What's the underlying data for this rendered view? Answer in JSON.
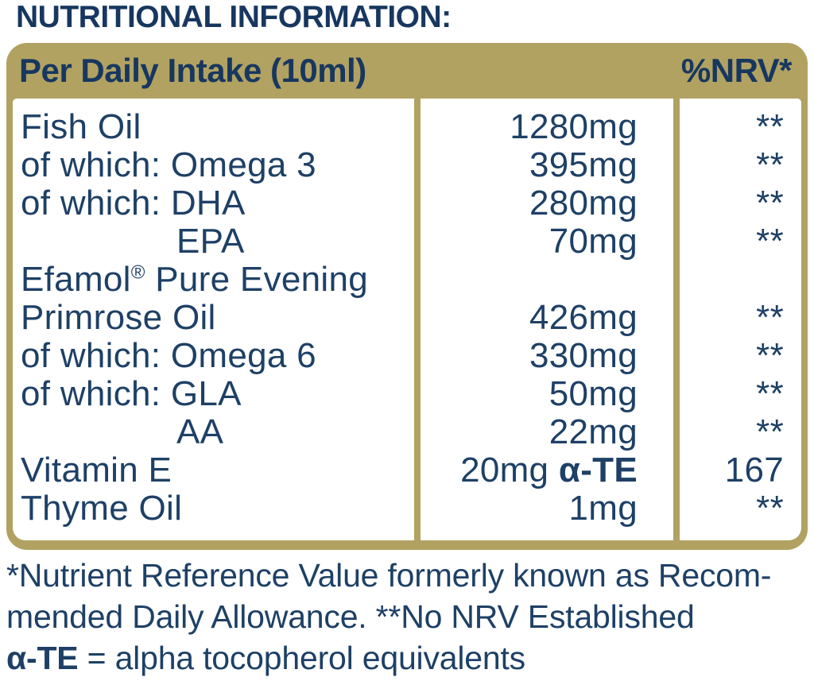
{
  "title": "NUTRITIONAL INFORMATION:",
  "colors": {
    "gold": "#b1a262",
    "navy_header": "#17375f",
    "navy_body": "#1e4066"
  },
  "table": {
    "header": {
      "intake_label": "Per Daily Intake (10ml)",
      "nrv_label": "%NRV*"
    },
    "rows": [
      {
        "name": "Fish Oil",
        "value": "1280mg",
        "nrv": "**"
      },
      {
        "name": "of which: Omega 3",
        "value": "395mg",
        "nrv": "**"
      },
      {
        "name": "of which: DHA",
        "value": "280mg",
        "nrv": "**"
      },
      {
        "name": "EPA",
        "value": "70mg",
        "nrv": "**"
      },
      {
        "name_brand": "Efamol",
        "name_reg": "®",
        "name_rest": " Pure Evening",
        "value": "",
        "nrv": ""
      },
      {
        "name": "Primrose Oil",
        "value": "426mg",
        "nrv": "**"
      },
      {
        "name": "of which: Omega 6",
        "value": "330mg",
        "nrv": "**"
      },
      {
        "name": "of which: GLA",
        "value": "50mg",
        "nrv": "**"
      },
      {
        "name": "AA",
        "value": "22mg",
        "nrv": "**"
      },
      {
        "name": "Vitamin E",
        "value_pre": "20mg ",
        "value_alpha": "α-TE",
        "nrv": "167"
      },
      {
        "name": "Thyme Oil",
        "value": "1mg",
        "nrv": "**"
      }
    ]
  },
  "footnote": {
    "line1": "*Nutrient Reference Value formerly known as Recom-",
    "line2": "mended Daily Allowance. **No NRV Established",
    "line3_alpha": "α-TE",
    "line3_rest": " = alpha tocopherol equivalents"
  }
}
